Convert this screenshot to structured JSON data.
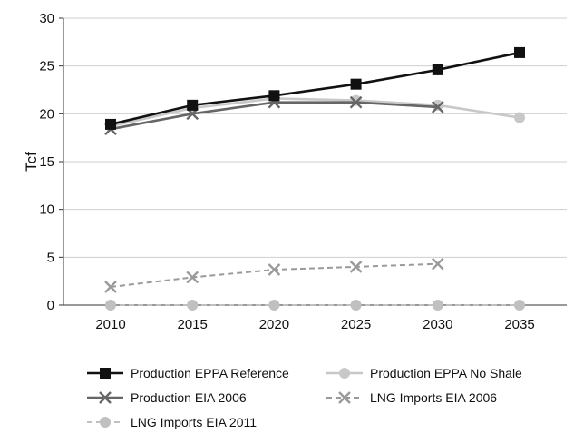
{
  "chart_data": {
    "type": "line",
    "title": "",
    "xlabel": "",
    "ylabel": "Tcf",
    "x": [
      "2010",
      "2015",
      "2020",
      "2025",
      "2030",
      "2035"
    ],
    "ylim": [
      0,
      30
    ],
    "yticks": [
      "0",
      "5",
      "10",
      "15",
      "20",
      "25",
      "30"
    ],
    "grid": "horizontal",
    "legend_position": "bottom",
    "series": [
      {
        "name": "Production EPPA Reference",
        "values": [
          18.9,
          20.9,
          21.9,
          23.1,
          24.6,
          26.4
        ],
        "color": "#111111",
        "marker": "square",
        "dash": "solid"
      },
      {
        "name": "Production EPPA No Shale",
        "values": [
          18.7,
          20.6,
          21.6,
          21.4,
          20.9,
          19.6
        ],
        "color": "#c8c8c8",
        "marker": "circle",
        "dash": "solid"
      },
      {
        "name": "Production EIA 2006",
        "values": [
          18.4,
          20.0,
          21.2,
          21.2,
          20.7,
          null
        ],
        "color": "#666666",
        "marker": "x",
        "dash": "solid"
      },
      {
        "name": "LNG Imports EIA 2006",
        "values": [
          1.9,
          2.9,
          3.7,
          4.0,
          4.3,
          null
        ],
        "color": "#9a9a9a",
        "marker": "x",
        "dash": "dashed"
      },
      {
        "name": "LNG Imports EIA 2011",
        "values": [
          0,
          0,
          0,
          0,
          0,
          0
        ],
        "color": "#c0c0c0",
        "marker": "circle",
        "dash": "dashed"
      }
    ]
  }
}
